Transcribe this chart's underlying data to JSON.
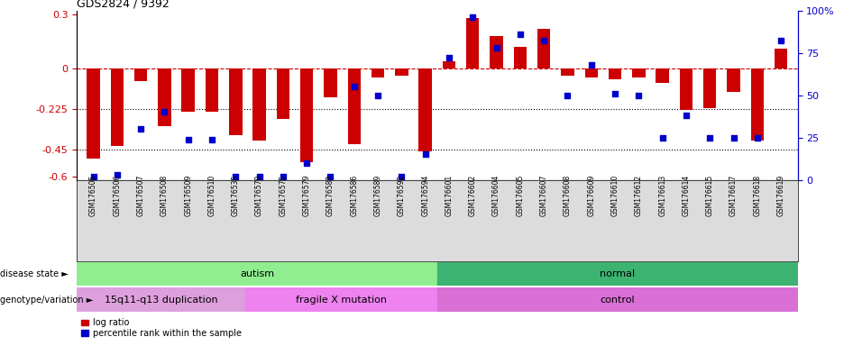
{
  "title": "GDS2824 / 9392",
  "samples": [
    "GSM176505",
    "GSM176506",
    "GSM176507",
    "GSM176508",
    "GSM176509",
    "GSM176510",
    "GSM176535",
    "GSM176570",
    "GSM176575",
    "GSM176579",
    "GSM176583",
    "GSM176586",
    "GSM176589",
    "GSM176592",
    "GSM176594",
    "GSM176601",
    "GSM176602",
    "GSM176604",
    "GSM176605",
    "GSM176607",
    "GSM176608",
    "GSM176609",
    "GSM176610",
    "GSM176612",
    "GSM176613",
    "GSM176614",
    "GSM176615",
    "GSM176617",
    "GSM176618",
    "GSM176619"
  ],
  "log_ratio": [
    -0.5,
    -0.43,
    -0.07,
    -0.32,
    -0.24,
    -0.24,
    -0.37,
    -0.4,
    -0.28,
    -0.52,
    -0.16,
    -0.42,
    -0.05,
    -0.04,
    -0.46,
    0.04,
    0.28,
    0.18,
    0.12,
    0.22,
    -0.04,
    -0.05,
    -0.06,
    -0.05,
    -0.08,
    -0.23,
    -0.22,
    -0.13,
    -0.4,
    0.11
  ],
  "percentile": [
    2,
    3,
    30,
    40,
    24,
    24,
    2,
    2,
    2,
    10,
    2,
    55,
    50,
    2,
    15,
    72,
    96,
    78,
    86,
    82,
    50,
    68,
    51,
    50,
    25,
    38,
    25,
    25,
    25,
    82
  ],
  "disease_state_spans": [
    {
      "label": "autism",
      "start": 0,
      "end": 15,
      "color": "#90EE90"
    },
    {
      "label": "normal",
      "start": 15,
      "end": 30,
      "color": "#3CB371"
    }
  ],
  "genotype_spans": [
    {
      "label": "15q11-q13 duplication",
      "start": 0,
      "end": 7,
      "color": "#DDA0DD"
    },
    {
      "label": "fragile X mutation",
      "start": 7,
      "end": 15,
      "color": "#EE82EE"
    },
    {
      "label": "control",
      "start": 15,
      "end": 30,
      "color": "#DA70D6"
    }
  ],
  "ylim_left": [
    -0.62,
    0.32
  ],
  "ylim_right": [
    0,
    100
  ],
  "yticks_left": [
    -0.6,
    -0.45,
    -0.225,
    0.0,
    0.3
  ],
  "ytick_labels_left": [
    "-0.6",
    "-0.45",
    "-0.225",
    "0",
    "0.3"
  ],
  "yticks_right": [
    0,
    25,
    50,
    75,
    100
  ],
  "ytick_labels_right": [
    "0",
    "25",
    "50",
    "75",
    "100%"
  ],
  "hline_y": 0.0,
  "dotted_lines": [
    -0.225,
    -0.45
  ],
  "bar_color": "#CC0000",
  "dot_color": "#0000CC",
  "legend_items": [
    "log ratio",
    "percentile rank within the sample"
  ],
  "ds_label": "disease state ►",
  "gv_label": "genotype/variation ►"
}
